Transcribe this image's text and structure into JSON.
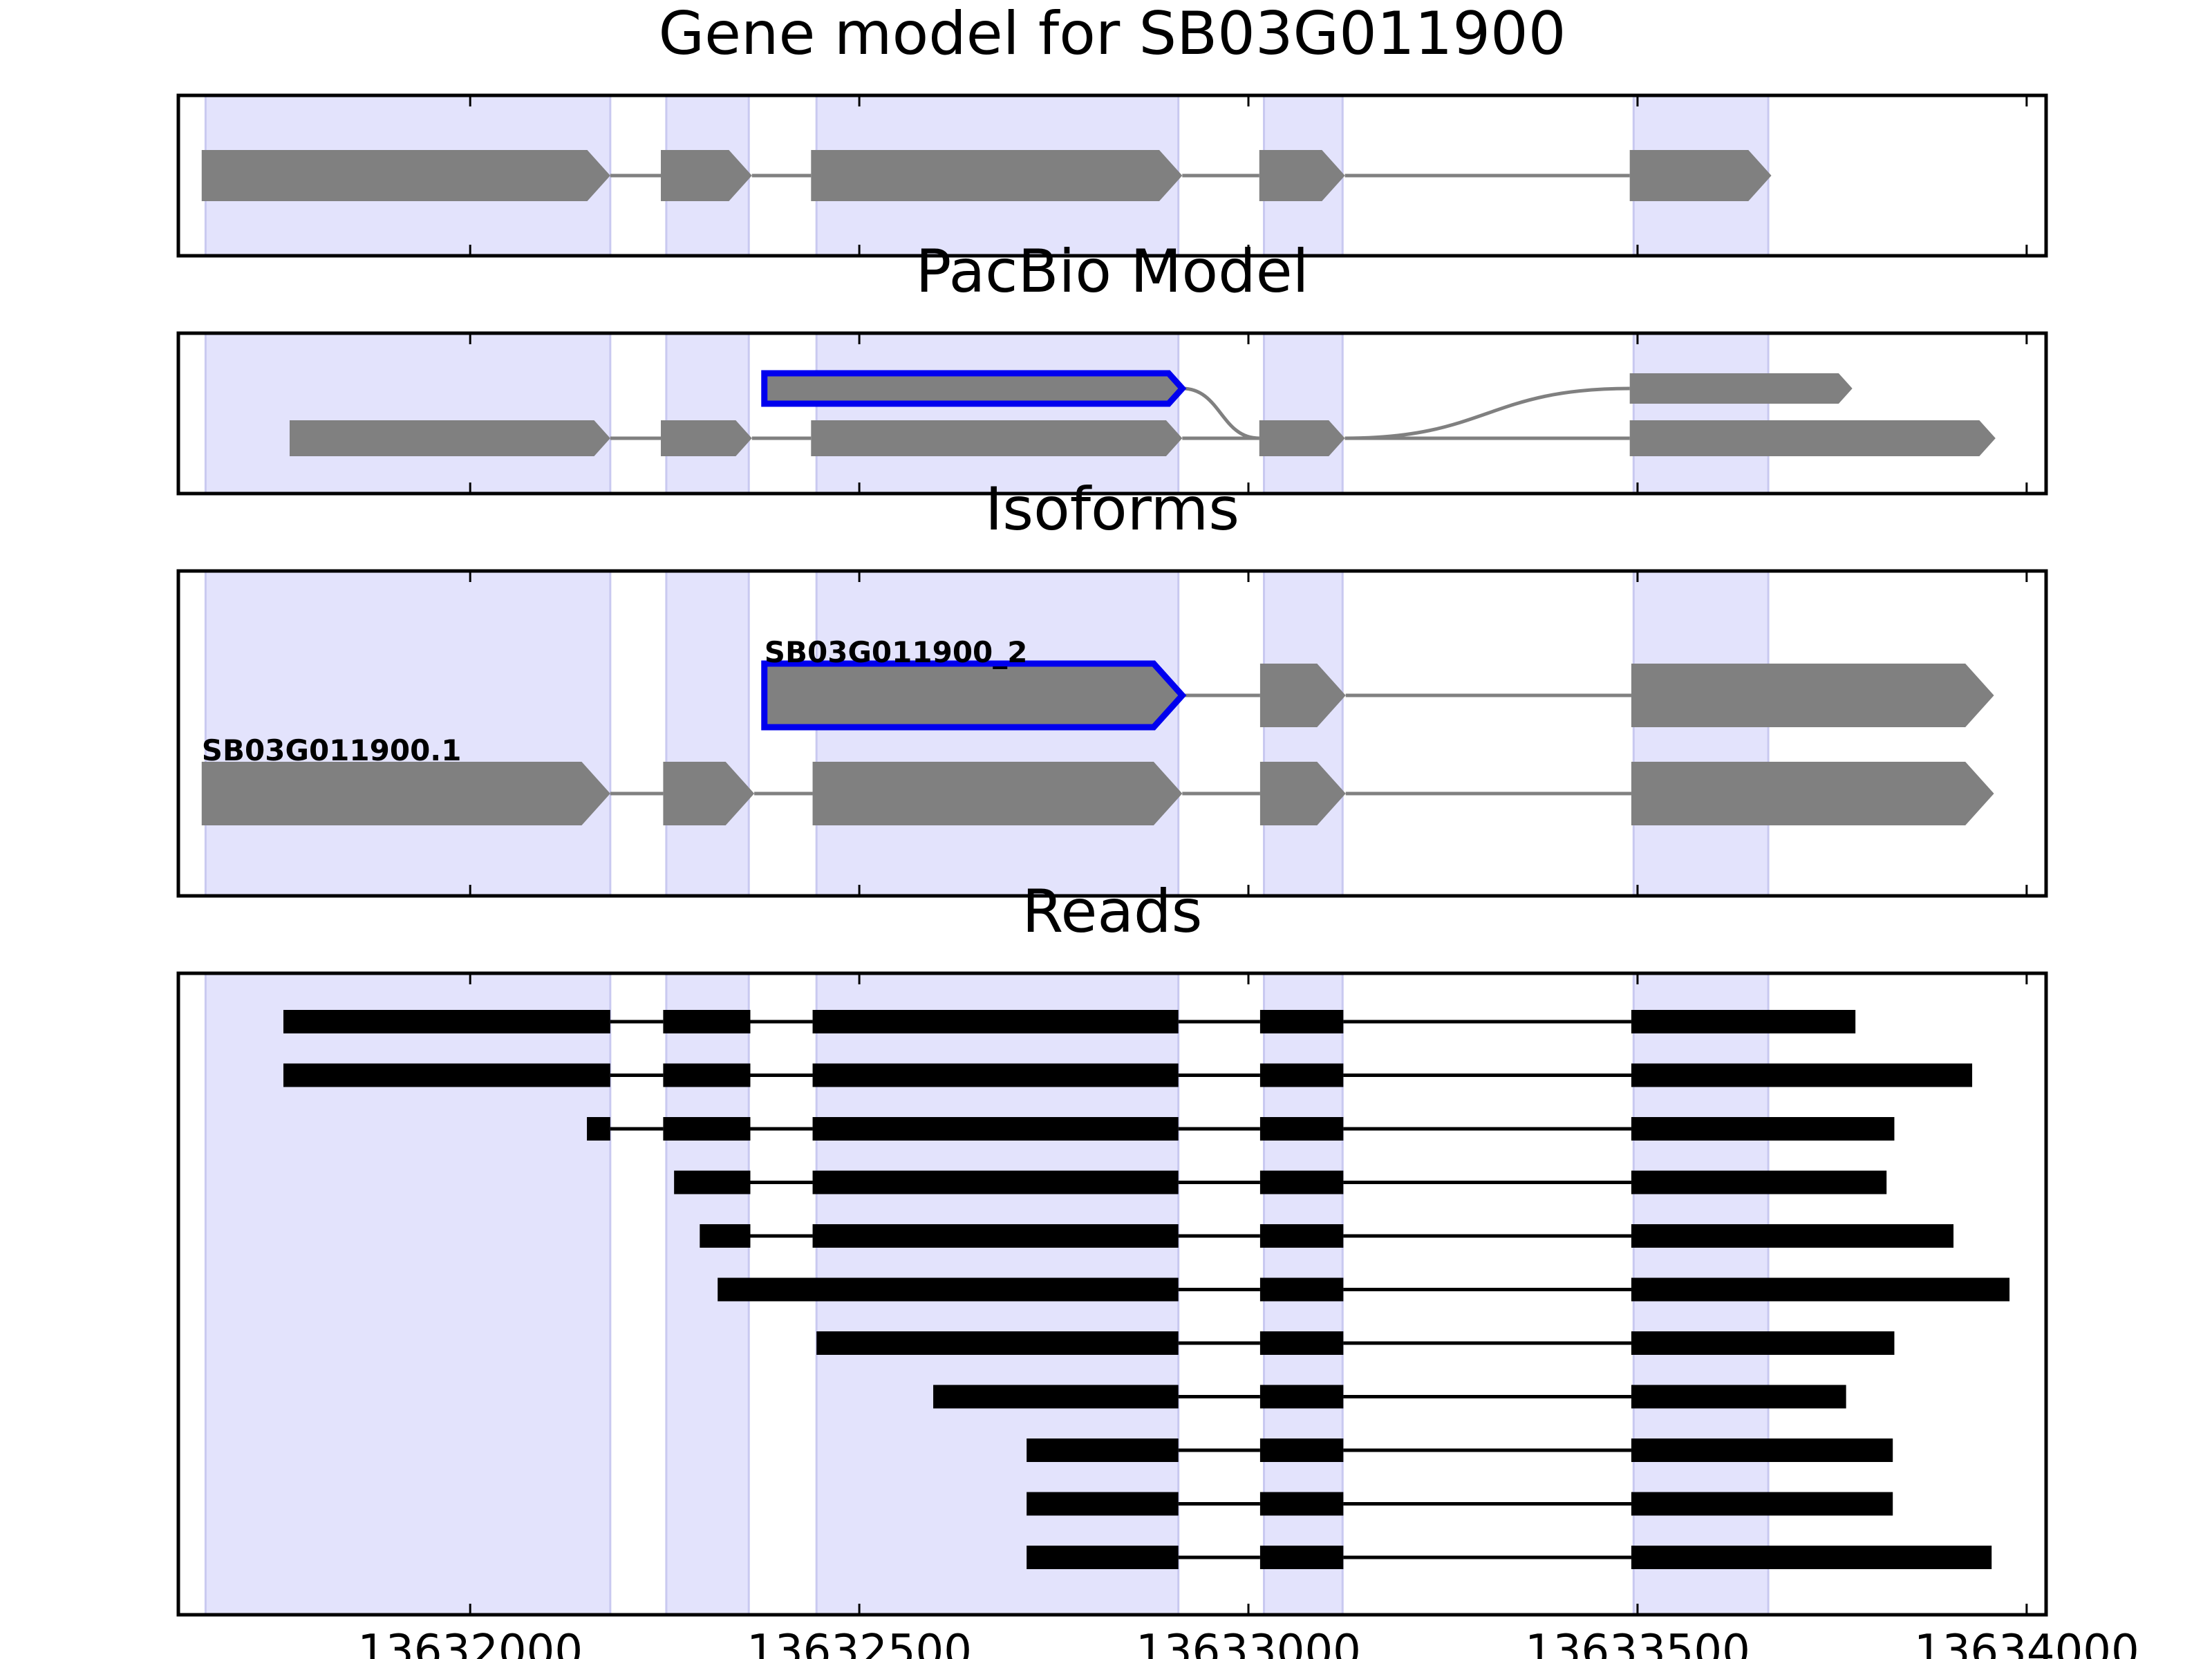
{
  "chart_data": {
    "type": "gene-model",
    "x_ticks": [
      13632000,
      13632500,
      13633000,
      13633500,
      13634000
    ],
    "shaded_regions": [
      [
        13631660,
        13632180
      ],
      [
        13632252,
        13632358
      ],
      [
        13632445,
        13632910
      ],
      [
        13633020,
        13633121
      ],
      [
        13633495,
        13633668
      ]
    ],
    "panels": [
      {
        "title": "Gene model for SB03G011900",
        "transcripts": [
          {
            "label": "",
            "highlight": false,
            "exons": [
              [
                13631655,
                13632180
              ],
              [
                13632245,
                13632362
              ],
              [
                13632438,
                13632915
              ],
              [
                13633014,
                13633124
              ],
              [
                13633490,
                13633672
              ]
            ]
          }
        ]
      },
      {
        "title": "PacBio Model",
        "transcripts": [
          {
            "label": "",
            "highlight": true,
            "exons": [
              [
                13632378,
                13632915
              ],
              [
                13633490,
                13633776
              ]
            ]
          },
          {
            "label": "",
            "highlight": false,
            "exons": [
              [
                13631768,
                13632180
              ],
              [
                13632245,
                13632362
              ],
              [
                13632438,
                13632915
              ],
              [
                13633014,
                13633124
              ],
              [
                13633490,
                13633960
              ]
            ]
          }
        ]
      },
      {
        "title": "Isoforms",
        "transcripts": [
          {
            "label": "SB03G011900_2",
            "highlight": true,
            "exons": [
              [
                13632378,
                13632915
              ],
              [
                13633015,
                13633125
              ],
              [
                13633492,
                13633958
              ]
            ]
          },
          {
            "label": "SB03G011900.1",
            "highlight": false,
            "exons": [
              [
                13631655,
                13632180
              ],
              [
                13632248,
                13632365
              ],
              [
                13632440,
                13632915
              ],
              [
                13633015,
                13633125
              ],
              [
                13633492,
                13633958
              ]
            ]
          }
        ]
      },
      {
        "title": "Reads",
        "reads": [
          [
            [
              13631760,
              13632180
            ],
            [
              13632248,
              13632360
            ],
            [
              13632440,
              13632910
            ],
            [
              13633015,
              13633122
            ],
            [
              13633492,
              13633780
            ]
          ],
          [
            [
              13631760,
              13632180
            ],
            [
              13632248,
              13632360
            ],
            [
              13632440,
              13632910
            ],
            [
              13633015,
              13633122
            ],
            [
              13633492,
              13633930
            ]
          ],
          [
            [
              13632150,
              13632180
            ],
            [
              13632248,
              13632360
            ],
            [
              13632440,
              13632910
            ],
            [
              13633015,
              13633122
            ],
            [
              13633492,
              13633830
            ]
          ],
          [
            [
              13632262,
              13632360
            ],
            [
              13632440,
              13632910
            ],
            [
              13633015,
              13633122
            ],
            [
              13633492,
              13633820
            ]
          ],
          [
            [
              13632295,
              13632360
            ],
            [
              13632440,
              13632910
            ],
            [
              13633015,
              13633122
            ],
            [
              13633492,
              13633906
            ]
          ],
          [
            [
              13632318,
              13632910
            ],
            [
              13633015,
              13633122
            ],
            [
              13633492,
              13633978
            ]
          ],
          [
            [
              13632445,
              13632910
            ],
            [
              13633015,
              13633122
            ],
            [
              13633492,
              13633830
            ]
          ],
          [
            [
              13632595,
              13632910
            ],
            [
              13633015,
              13633122
            ],
            [
              13633492,
              13633768
            ]
          ],
          [
            [
              13632715,
              13632910
            ],
            [
              13633015,
              13633122
            ],
            [
              13633492,
              13633828
            ]
          ],
          [
            [
              13632715,
              13632910
            ],
            [
              13633015,
              13633122
            ],
            [
              13633492,
              13633828
            ]
          ],
          [
            [
              13632715,
              13632910
            ],
            [
              13633015,
              13633122
            ],
            [
              13633492,
              13633955
            ]
          ]
        ]
      }
    ],
    "colors": {
      "exon": "#808080",
      "intron": "#808080",
      "highlight": "#0000ee",
      "read": "#000000",
      "shade": "#e3e3fc",
      "shade_edge": "#c9c9f0",
      "axis": "#000000"
    }
  }
}
